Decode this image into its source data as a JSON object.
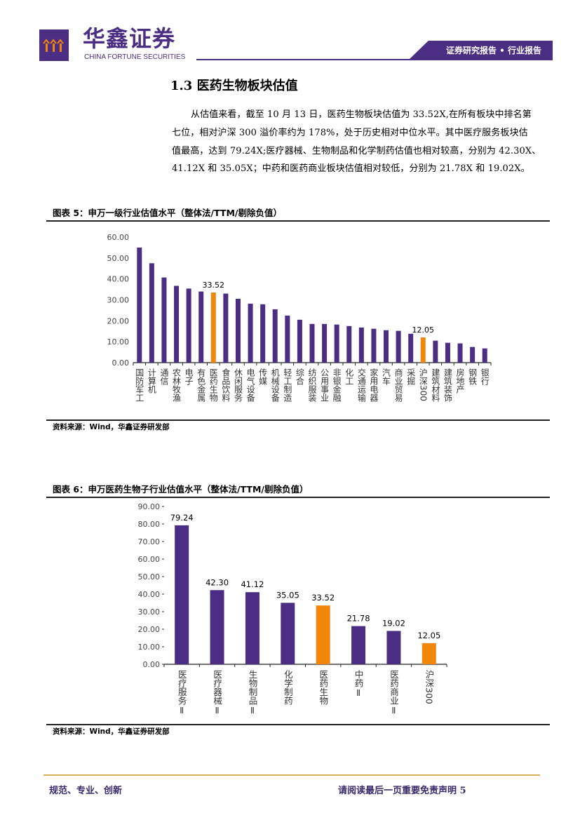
{
  "header": {
    "logo_cn": "华鑫证券",
    "logo_en": "CHINA FORTUNE SECURITIES",
    "tab": "证券研究报告 • 行业报告"
  },
  "section": {
    "title": "1.3 医药生物板块估值",
    "paragraph_lines": [
      "从估值来看，截至 10 月 13 日，医药生物板块估值为 33.52X,在所有板块中排名第",
      "七位，相对沪深 300 溢价率约为 178%，处于历史相对中位水平。其中医疗服务板块估",
      "值最高，达到 79.24X;医疗器械、生物制品和化学制药估值也相对较高，分别为 42.30X、",
      "41.12X 和 35.05X；中药和医药商业板块估值相对较低，分别为 21.78X 和 19.02X。"
    ]
  },
  "colors": {
    "primary": "#4b2e83",
    "highlight": "#f0860a"
  },
  "chart_data": [
    {
      "type": "bar",
      "title": "图表 5：申万一级行业估值水平（整体法/TTM/剔除负值）",
      "ylim": [
        0,
        60
      ],
      "yticks": [
        "0.00",
        "10.00",
        "20.00",
        "30.00",
        "40.00",
        "50.00",
        "60.00"
      ],
      "categories": [
        "国防军工",
        "计算机",
        "通信",
        "农林牧渔",
        "电子",
        "有色金属",
        "医药生物",
        "食品饮料",
        "休闲服务",
        "电气设备",
        "传媒",
        "机械设备",
        "轻工制造",
        "综合",
        "纺织服装",
        "公用事业",
        "非银金融",
        "化工",
        "交通运输",
        "家用电器",
        "汽车",
        "商业贸易",
        "采掘",
        "沪深300",
        "建筑材料",
        "建筑装饰",
        "房地产",
        "钢铁",
        "银行"
      ],
      "values": [
        55.0,
        47.5,
        40.7,
        36.7,
        35.4,
        34.0,
        33.52,
        33.0,
        30.5,
        28.2,
        27.9,
        25.5,
        22.5,
        20.5,
        18.5,
        18.5,
        18.2,
        17.5,
        16.8,
        16.2,
        15.5,
        15.2,
        13.8,
        12.05,
        10.5,
        9.5,
        9.2,
        7.5,
        6.8
      ],
      "highlight": [
        "医药生物",
        "沪深300"
      ],
      "data_labels": {
        "医药生物": "33.52",
        "沪深300": "12.05"
      },
      "source": "资料来源：Wind，华鑫证券研发部"
    },
    {
      "type": "bar",
      "title": "图表 6：申万医药生物子行业估值水平（整体法/TTM/剔除负值）",
      "ylim": [
        0,
        90
      ],
      "yticks": [
        "0.00",
        "10.00",
        "20.00",
        "30.00",
        "40.00",
        "50.00",
        "60.00",
        "70.00",
        "80.00",
        "90.00"
      ],
      "categories": [
        "医疗服务Ⅱ",
        "医疗器械Ⅱ",
        "生物制品Ⅱ",
        "化学制药",
        "医药生物",
        "中药Ⅱ",
        "医药商业Ⅱ",
        "沪深300"
      ],
      "values": [
        79.24,
        42.3,
        41.12,
        35.05,
        33.52,
        21.78,
        19.02,
        12.05
      ],
      "highlight": [
        "医药生物",
        "沪深300"
      ],
      "data_labels": {
        "医疗服务Ⅱ": "79.24",
        "医疗器械Ⅱ": "42.30",
        "生物制品Ⅱ": "41.12",
        "化学制药": "35.05",
        "医药生物": "33.52",
        "中药Ⅱ": "21.78",
        "医药商业Ⅱ": "19.02",
        "沪深300": "12.05"
      },
      "source": "资料来源：Wind，华鑫证券研发部"
    }
  ],
  "footer": {
    "left": "规范、专业、创新",
    "right": "请阅读最后一页重要免责声明 5"
  }
}
